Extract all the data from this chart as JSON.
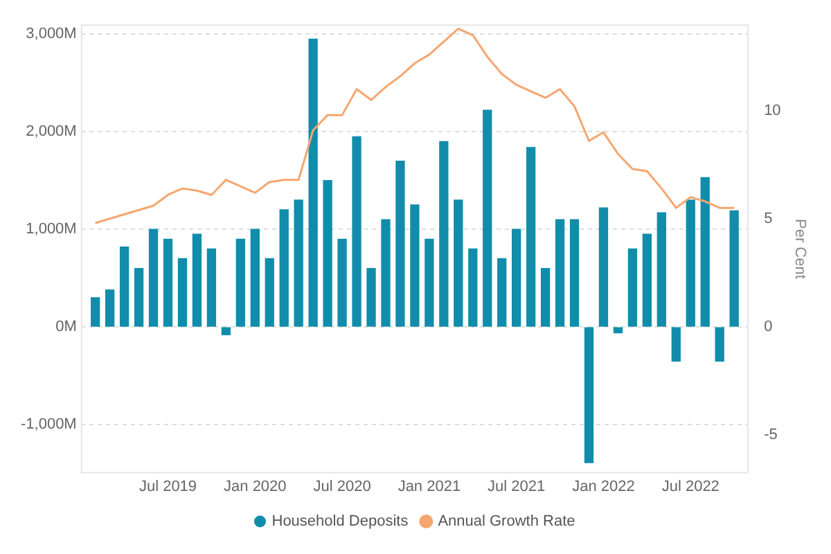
{
  "chart_data": {
    "type": "bar",
    "x": [
      "2019-02",
      "2019-03",
      "2019-04",
      "2019-05",
      "2019-06",
      "2019-07",
      "2019-08",
      "2019-09",
      "2019-10",
      "2019-11",
      "2019-12",
      "2020-01",
      "2020-02",
      "2020-03",
      "2020-04",
      "2020-05",
      "2020-06",
      "2020-07",
      "2020-08",
      "2020-09",
      "2020-10",
      "2020-11",
      "2020-12",
      "2021-01",
      "2021-02",
      "2021-03",
      "2021-04",
      "2021-05",
      "2021-06",
      "2021-07",
      "2021-08",
      "2021-09",
      "2021-10",
      "2021-11",
      "2021-12",
      "2022-01",
      "2022-02",
      "2022-03",
      "2022-04",
      "2022-05",
      "2022-06",
      "2022-07",
      "2022-08",
      "2022-09",
      "2022-10"
    ],
    "series": [
      {
        "name": "Household Deposits",
        "color": "#118dab",
        "values": [
          300,
          380,
          820,
          600,
          1000,
          900,
          700,
          950,
          800,
          -80,
          900,
          1000,
          700,
          1200,
          1300,
          2950,
          1500,
          900,
          1950,
          600,
          1100,
          1700,
          1250,
          900,
          1900,
          1300,
          800,
          2220,
          700,
          1000,
          1840,
          600,
          1100,
          1100,
          -1390,
          1220,
          -60,
          800,
          950,
          1170,
          -350,
          1300,
          1530,
          -350,
          1190
        ]
      },
      {
        "name": "Annual Growth Rate",
        "type": "line",
        "axis": "y2",
        "color": "#f5a66f",
        "values": [
          4.8,
          5.0,
          5.2,
          5.4,
          5.6,
          6.1,
          6.4,
          6.3,
          6.1,
          6.8,
          6.5,
          6.2,
          6.7,
          6.8,
          6.8,
          9.1,
          9.8,
          9.8,
          11.0,
          10.5,
          11.1,
          11.6,
          12.2,
          12.6,
          13.2,
          13.8,
          13.5,
          12.5,
          11.7,
          11.2,
          10.9,
          10.6,
          11.0,
          10.2,
          8.6,
          9.0,
          8.0,
          7.3,
          7.2,
          6.4,
          5.5,
          6.0,
          5.8,
          5.5,
          5.5
        ]
      }
    ],
    "xlim": [
      "2019-01",
      "2022-11"
    ],
    "xticks": [
      {
        "value": "2019-07",
        "label": "Jul 2019"
      },
      {
        "value": "2020-01",
        "label": "Jan 2020"
      },
      {
        "value": "2020-07",
        "label": "Jul 2020"
      },
      {
        "value": "2021-01",
        "label": "Jan 2021"
      },
      {
        "value": "2021-07",
        "label": "Jul 2021"
      },
      {
        "value": "2022-01",
        "label": "Jan 2022"
      },
      {
        "value": "2022-07",
        "label": "Jul 2022"
      }
    ],
    "ylim": [
      -1500,
      3100
    ],
    "yticks": [
      {
        "value": -1000,
        "label": "-1,000M"
      },
      {
        "value": 0,
        "label": "0M"
      },
      {
        "value": 1000,
        "label": "1,000M"
      },
      {
        "value": 2000,
        "label": "2,000M"
      },
      {
        "value": 3000,
        "label": "3,000M"
      }
    ],
    "y2lim": [
      -6.8,
      14.0
    ],
    "y2ticks": [
      -5,
      0,
      5,
      10
    ],
    "y2label": "Per Cent",
    "grid": "y",
    "legend": "bottom"
  }
}
